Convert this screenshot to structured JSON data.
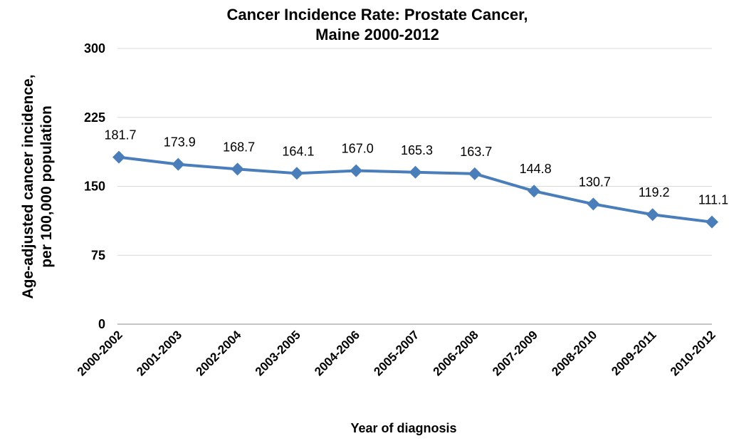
{
  "chart_data": {
    "type": "line",
    "title": [
      "Cancer Incidence Rate: Prostate Cancer,",
      "Maine 2000-2012"
    ],
    "xlabel": "Year of diagnosis",
    "ylabel": [
      "Age-adjusted cancer incidence,",
      "per 100,000 population"
    ],
    "categories": [
      "2000-2002",
      "2001-2003",
      "2002-2004",
      "2003-2005",
      "2004-2006",
      "2005-2007",
      "2006-2008",
      "2007-2009",
      "2008-2010",
      "2009-2011",
      "2010-2012"
    ],
    "series": [
      {
        "color": "#4a7ebb",
        "values": [
          181.7,
          173.9,
          168.7,
          164.1,
          167.0,
          165.3,
          163.7,
          144.8,
          130.7,
          119.2,
          111.1
        ],
        "value_labels": [
          "181.7",
          "173.9",
          "168.7",
          "164.1",
          "167.0",
          "165.3",
          "163.7",
          "144.8",
          "130.7",
          "119.2",
          "111.1"
        ]
      }
    ],
    "ylim": [
      0,
      300
    ],
    "yticks": [
      0,
      75,
      150,
      225,
      300
    ],
    "grid": true
  }
}
